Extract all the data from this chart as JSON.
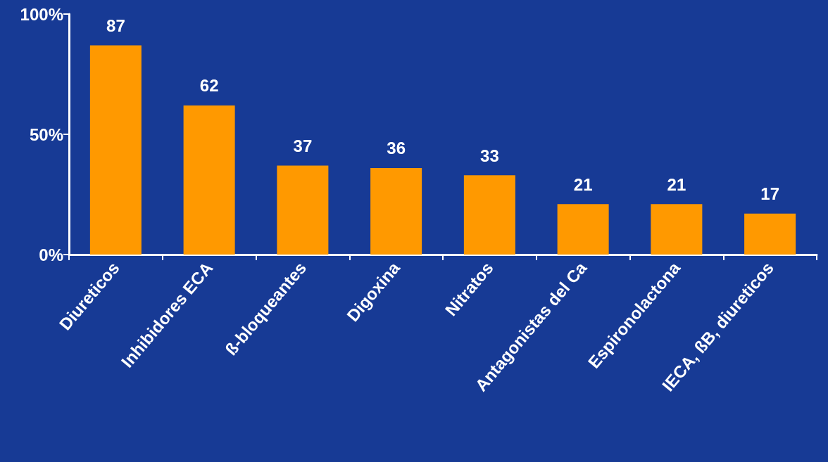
{
  "chart_data": {
    "type": "bar",
    "categories": [
      "Diureticos",
      "Inhibidores ECA",
      "ß-bloqueantes",
      "Digoxina",
      "Nitratos",
      "Antagonistas del Ca",
      "Espironolactona",
      "IECA, ßB, diureticos"
    ],
    "values": [
      87,
      62,
      37,
      36,
      33,
      21,
      21,
      17
    ],
    "color": "#ff9900",
    "ylim": [
      0,
      100
    ],
    "yticks": [
      {
        "value": 0,
        "label": "0%"
      },
      {
        "value": 50,
        "label": "50%"
      },
      {
        "value": 100,
        "label": "100%"
      }
    ],
    "data_labels": true
  }
}
